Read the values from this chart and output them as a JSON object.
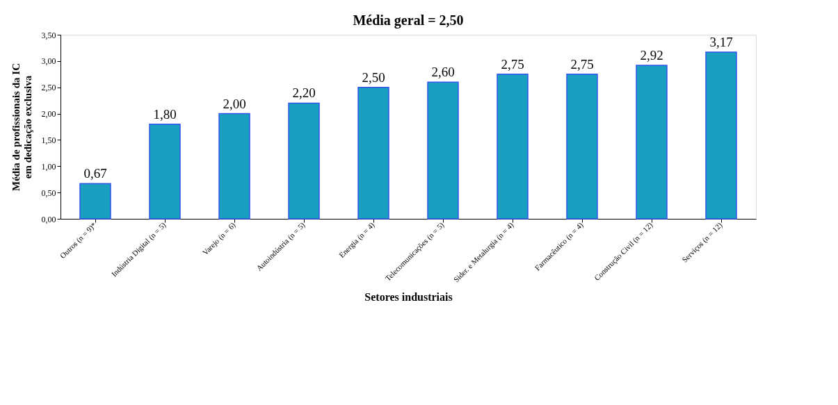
{
  "chart_data": {
    "type": "bar",
    "title": "Média geral = 2,50",
    "xlabel": "Setores industriais",
    "ylabel": "Média de profissionais da IC\nem dedicação exclusiva",
    "categories": [
      "Outros (n = 9)*",
      "Indústria Digital (n = 5)",
      "Varejo (n = 6)",
      "Autoindústria (n = 5)",
      "Energia (n = 4)",
      "Telecomunicações (n = 5)",
      "Sider. e Metalurgia (n = 4)",
      "Farmacêutico (n = 4)",
      "Construção Civil (n = 12)",
      "Serviços (n = 12)"
    ],
    "values": [
      0.67,
      1.8,
      2.0,
      2.2,
      2.5,
      2.6,
      2.75,
      2.75,
      2.92,
      3.17
    ],
    "value_labels": [
      "0,67",
      "1,80",
      "2,00",
      "2,20",
      "2,50",
      "2,60",
      "2,75",
      "2,75",
      "2,92",
      "3,17"
    ],
    "color": "#1a9fc0",
    "ylim": [
      0,
      3.5
    ],
    "yticks": [
      {
        "value": 0,
        "label": "0,00"
      },
      {
        "value": 0.5,
        "label": "0,50"
      },
      {
        "value": 1,
        "label": "1,00"
      },
      {
        "value": 1.5,
        "label": "1,50"
      },
      {
        "value": 2,
        "label": "2,00"
      },
      {
        "value": 2.5,
        "label": "2,50"
      },
      {
        "value": 3,
        "label": "3,00"
      },
      {
        "value": 3.5,
        "label": "3,50"
      }
    ],
    "grid": false
  }
}
